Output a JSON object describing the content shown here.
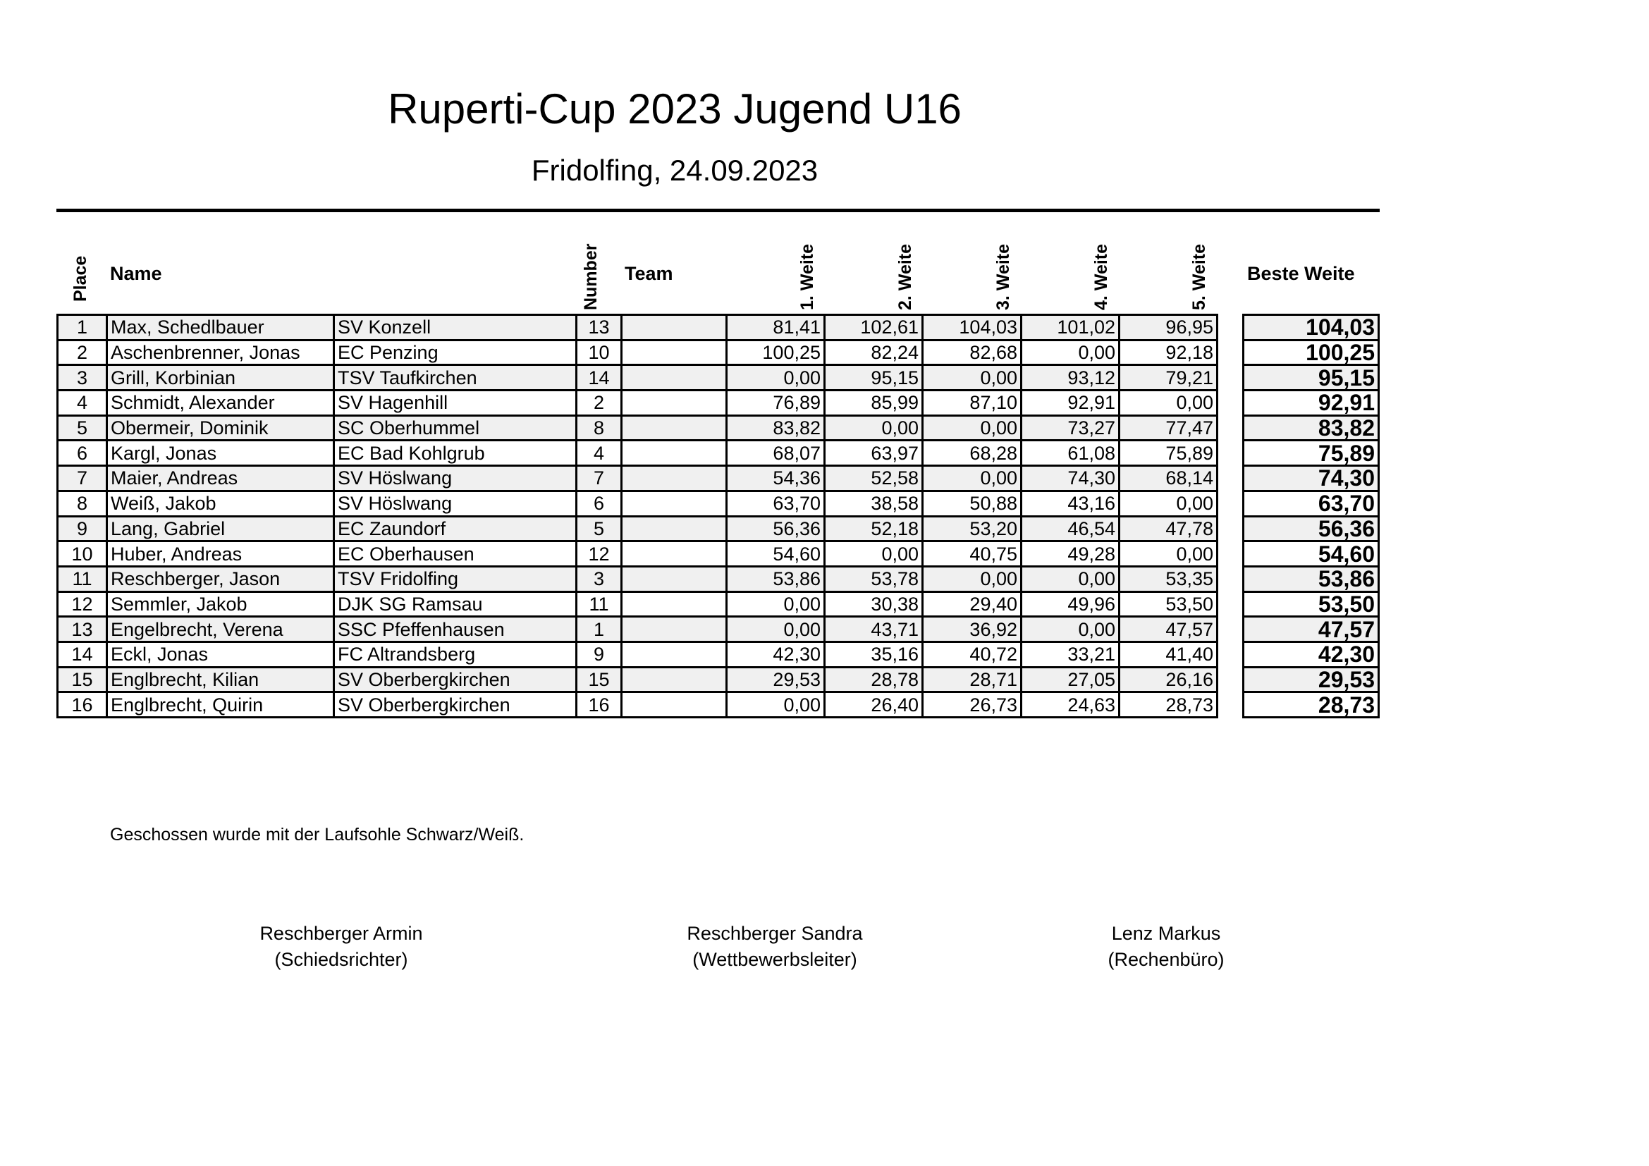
{
  "title": "Ruperti-Cup 2023 Jugend U16",
  "subtitle": "Fridolfing, 24.09.2023",
  "headers": {
    "place": "Place",
    "name": "Name",
    "number": "Number",
    "team": "Team",
    "w1": "1. Weite",
    "w2": "2. Weite",
    "w3": "3. Weite",
    "w4": "4. Weite",
    "w5": "5. Weite",
    "best": "Beste Weite"
  },
  "rows": [
    {
      "place": "1",
      "name": "Max, Schedlbauer",
      "club": "SV Konzell",
      "number": "13",
      "team": "",
      "w": [
        "81,41",
        "102,61",
        "104,03",
        "101,02",
        "96,95"
      ],
      "best": "104,03"
    },
    {
      "place": "2",
      "name": "Aschenbrenner, Jonas",
      "club": "EC Penzing",
      "number": "10",
      "team": "",
      "w": [
        "100,25",
        "82,24",
        "82,68",
        "0,00",
        "92,18"
      ],
      "best": "100,25"
    },
    {
      "place": "3",
      "name": "Grill, Korbinian",
      "club": "TSV Taufkirchen",
      "number": "14",
      "team": "",
      "w": [
        "0,00",
        "95,15",
        "0,00",
        "93,12",
        "79,21"
      ],
      "best": "95,15"
    },
    {
      "place": "4",
      "name": "Schmidt, Alexander",
      "club": "SV Hagenhill",
      "number": "2",
      "team": "",
      "w": [
        "76,89",
        "85,99",
        "87,10",
        "92,91",
        "0,00"
      ],
      "best": "92,91"
    },
    {
      "place": "5",
      "name": "Obermeir, Dominik",
      "club": "SC Oberhummel",
      "number": "8",
      "team": "",
      "w": [
        "83,82",
        "0,00",
        "0,00",
        "73,27",
        "77,47"
      ],
      "best": "83,82"
    },
    {
      "place": "6",
      "name": "Kargl, Jonas",
      "club": "EC Bad Kohlgrub",
      "number": "4",
      "team": "",
      "w": [
        "68,07",
        "63,97",
        "68,28",
        "61,08",
        "75,89"
      ],
      "best": "75,89"
    },
    {
      "place": "7",
      "name": "Maier, Andreas",
      "club": "SV Höslwang",
      "number": "7",
      "team": "",
      "w": [
        "54,36",
        "52,58",
        "0,00",
        "74,30",
        "68,14"
      ],
      "best": "74,30"
    },
    {
      "place": "8",
      "name": "Weiß, Jakob",
      "club": "SV Höslwang",
      "number": "6",
      "team": "",
      "w": [
        "63,70",
        "38,58",
        "50,88",
        "43,16",
        "0,00"
      ],
      "best": "63,70"
    },
    {
      "place": "9",
      "name": "Lang, Gabriel",
      "club": "EC Zaundorf",
      "number": "5",
      "team": "",
      "w": [
        "56,36",
        "52,18",
        "53,20",
        "46,54",
        "47,78"
      ],
      "best": "56,36"
    },
    {
      "place": "10",
      "name": "Huber, Andreas",
      "club": "EC Oberhausen",
      "number": "12",
      "team": "",
      "w": [
        "54,60",
        "0,00",
        "40,75",
        "49,28",
        "0,00"
      ],
      "best": "54,60"
    },
    {
      "place": "11",
      "name": "Reschberger, Jason",
      "club": "TSV Fridolfing",
      "number": "3",
      "team": "",
      "w": [
        "53,86",
        "53,78",
        "0,00",
        "0,00",
        "53,35"
      ],
      "best": "53,86"
    },
    {
      "place": "12",
      "name": "Semmler, Jakob",
      "club": "DJK SG Ramsau",
      "number": "11",
      "team": "",
      "w": [
        "0,00",
        "30,38",
        "29,40",
        "49,96",
        "53,50"
      ],
      "best": "53,50"
    },
    {
      "place": "13",
      "name": "Engelbrecht, Verena",
      "club": "SSC Pfeffenhausen",
      "number": "1",
      "team": "",
      "w": [
        "0,00",
        "43,71",
        "36,92",
        "0,00",
        "47,57"
      ],
      "best": "47,57"
    },
    {
      "place": "14",
      "name": "Eckl, Jonas",
      "club": "FC Altrandsberg",
      "number": "9",
      "team": "",
      "w": [
        "42,30",
        "35,16",
        "40,72",
        "33,21",
        "41,40"
      ],
      "best": "42,30"
    },
    {
      "place": "15",
      "name": "Englbrecht, Kilian",
      "club": "SV Oberbergkirchen",
      "number": "15",
      "team": "",
      "w": [
        "29,53",
        "28,78",
        "28,71",
        "27,05",
        "26,16"
      ],
      "best": "29,53"
    },
    {
      "place": "16",
      "name": "Englbrecht, Quirin",
      "club": "SV Oberbergkirchen",
      "number": "16",
      "team": "",
      "w": [
        "0,00",
        "26,40",
        "26,73",
        "24,63",
        "28,73"
      ],
      "best": "28,73"
    }
  ],
  "note": "Geschossen wurde mit der Laufsohle Schwarz/Weiß.",
  "signatures": [
    {
      "name": "Reschberger Armin",
      "role": "(Schiedsrichter)"
    },
    {
      "name": "Reschberger Sandra",
      "role": "(Wettbewerbsleiter)"
    },
    {
      "name": "Lenz Markus",
      "role": "(Rechenbüro)"
    }
  ]
}
